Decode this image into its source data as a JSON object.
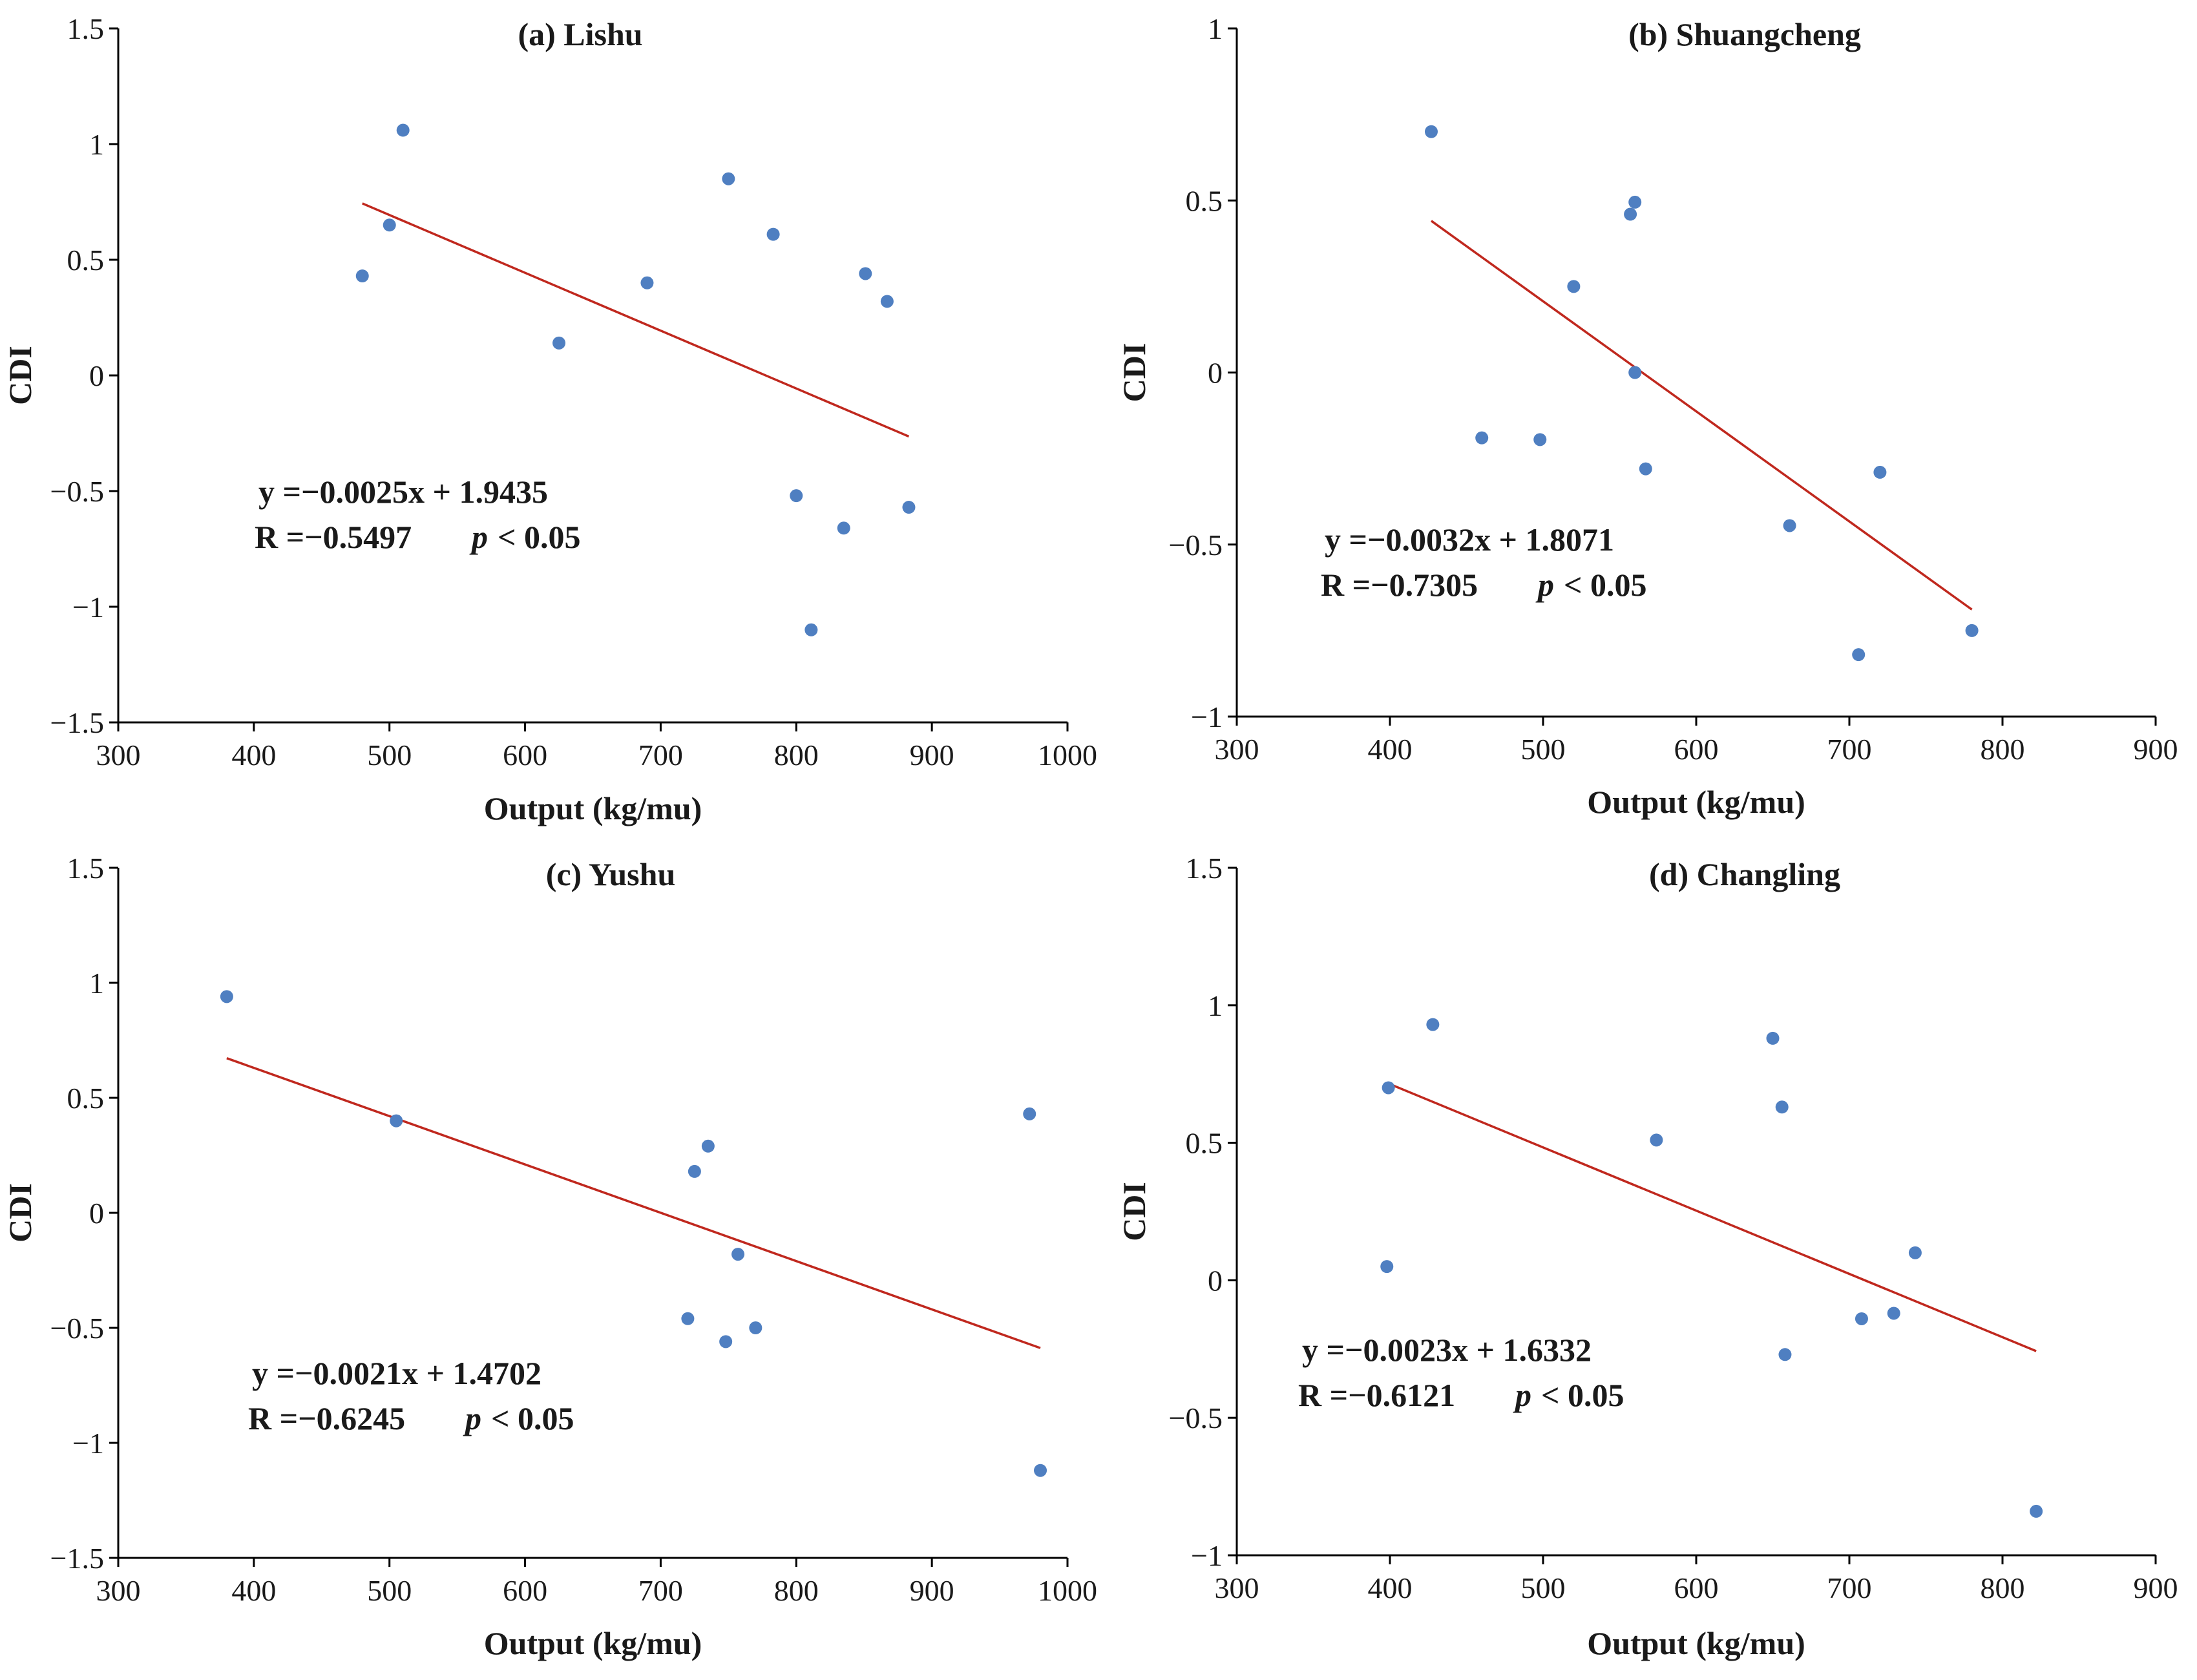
{
  "chart_data": [
    {
      "type": "scatter",
      "title": "(a) Lishu",
      "xlabel": "Output (kg/mu)",
      "ylabel": "CDI",
      "xlim": [
        300,
        1000
      ],
      "ylim": [
        -1.5,
        1.5
      ],
      "xticks": [
        300,
        400,
        500,
        600,
        700,
        800,
        900,
        1000
      ],
      "yticks": [
        -1.5,
        -1,
        -0.5,
        0,
        0.5,
        1,
        1.5
      ],
      "ytick_labels": [
        "−1.5",
        "−1",
        "−0.5",
        "0",
        "0.5",
        "1",
        "1.5"
      ],
      "points": [
        [
          480,
          0.43
        ],
        [
          500,
          0.65
        ],
        [
          510,
          1.06
        ],
        [
          625,
          0.14
        ],
        [
          690,
          0.4
        ],
        [
          750,
          0.85
        ],
        [
          783,
          0.61
        ],
        [
          800,
          -0.52
        ],
        [
          811,
          -1.1
        ],
        [
          835,
          -0.66
        ],
        [
          851,
          0.44
        ],
        [
          867,
          0.32
        ],
        [
          883,
          -0.57
        ]
      ],
      "fit": {
        "slope": -0.0025,
        "intercept": 1.9435,
        "x_range": [
          480,
          883
        ]
      },
      "equation": "y =−0.0025x + 1.9435",
      "r_text": "R =−0.5497",
      "p_text": "< 0.05"
    },
    {
      "type": "scatter",
      "title": "(b) Shuangcheng",
      "xlabel": "Output (kg/mu)",
      "ylabel": "CDI",
      "xlim": [
        300,
        900
      ],
      "ylim": [
        -1,
        1
      ],
      "xticks": [
        300,
        400,
        500,
        600,
        700,
        800,
        900
      ],
      "yticks": [
        -1,
        -0.5,
        0,
        0.5,
        1
      ],
      "ytick_labels": [
        "−1",
        "−0.5",
        "0",
        "0.5",
        "1"
      ],
      "points": [
        [
          427,
          0.7
        ],
        [
          460,
          -0.19
        ],
        [
          498,
          -0.195
        ],
        [
          520,
          0.25
        ],
        [
          557,
          0.46
        ],
        [
          560,
          0.495
        ],
        [
          560,
          0.0
        ],
        [
          567,
          -0.28
        ],
        [
          661,
          -0.445
        ],
        [
          706,
          -0.82
        ],
        [
          720,
          -0.29
        ],
        [
          780,
          -0.75
        ]
      ],
      "fit": {
        "slope": -0.0032,
        "intercept": 1.8071,
        "x_range": [
          427,
          780
        ]
      },
      "equation": "y =−0.0032x + 1.8071",
      "r_text": "R =−0.7305",
      "p_text": "< 0.05"
    },
    {
      "type": "scatter",
      "title": "(c) Yushu",
      "xlabel": "Output (kg/mu)",
      "ylabel": "CDI",
      "xlim": [
        300,
        1000
      ],
      "ylim": [
        -1.5,
        1.5
      ],
      "xticks": [
        300,
        400,
        500,
        600,
        700,
        800,
        900,
        1000
      ],
      "yticks": [
        -1.5,
        -1,
        -0.5,
        0,
        0.5,
        1,
        1.5
      ],
      "ytick_labels": [
        "−1.5",
        "−1",
        "−0.5",
        "0",
        "0.5",
        "1",
        "1.5"
      ],
      "points": [
        [
          380,
          0.94
        ],
        [
          505,
          0.4
        ],
        [
          720,
          -0.46
        ],
        [
          725,
          0.18
        ],
        [
          735,
          0.29
        ],
        [
          748,
          -0.56
        ],
        [
          757,
          -0.18
        ],
        [
          770,
          -0.5
        ],
        [
          972,
          0.43
        ],
        [
          980,
          -1.12
        ]
      ],
      "fit": {
        "slope": -0.0021,
        "intercept": 1.4702,
        "x_range": [
          380,
          980
        ]
      },
      "equation": "y =−0.0021x + 1.4702",
      "r_text": "R =−0.6245",
      "p_text": "< 0.05"
    },
    {
      "type": "scatter",
      "title": "(d) Changling",
      "xlabel": "Output (kg/mu)",
      "ylabel": "CDI",
      "xlim": [
        300,
        900
      ],
      "ylim": [
        -1,
        1.5
      ],
      "xticks": [
        300,
        400,
        500,
        600,
        700,
        800,
        900
      ],
      "yticks": [
        -1,
        -0.5,
        0,
        0.5,
        1,
        1.5
      ],
      "ytick_labels": [
        "−1",
        "−0.5",
        "0",
        "0.5",
        "1",
        "1.5"
      ],
      "points": [
        [
          398,
          0.05
        ],
        [
          399,
          0.7
        ],
        [
          428,
          0.93
        ],
        [
          574,
          0.51
        ],
        [
          650,
          0.88
        ],
        [
          656,
          0.63
        ],
        [
          658,
          -0.27
        ],
        [
          708,
          -0.14
        ],
        [
          729,
          -0.12
        ],
        [
          743,
          0.1
        ],
        [
          822,
          -0.84
        ]
      ],
      "fit": {
        "slope": -0.0023,
        "intercept": 1.6332,
        "x_range": [
          398,
          822
        ]
      },
      "equation": "y =−0.0023x + 1.6332",
      "r_text": "R =−0.6121",
      "p_text": "< 0.05"
    }
  ],
  "labels": {
    "p_symbol": "p"
  }
}
